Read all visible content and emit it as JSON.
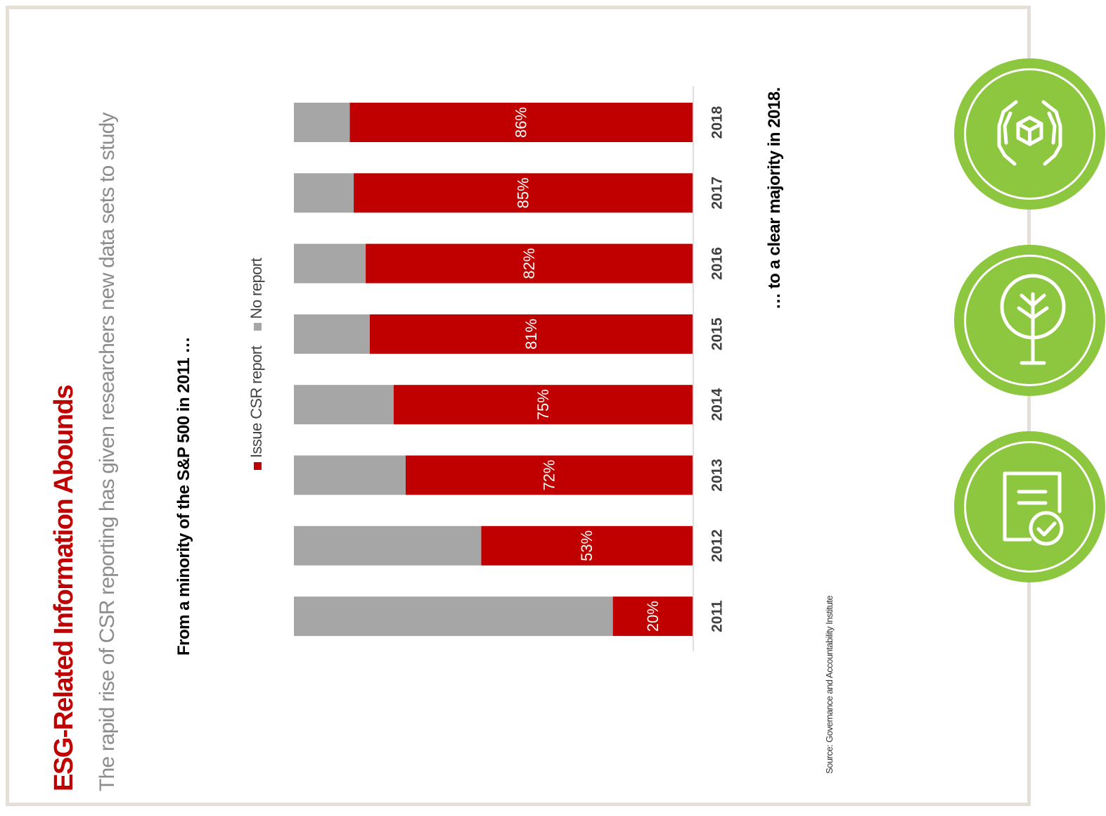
{
  "header": {
    "title": "ESG-Related Information Abounds",
    "subtitle": "The rapid rise of CSR reporting has given researchers new data sets to study"
  },
  "annotations": {
    "from": "From a minority of the S&P 500 in 2011 …",
    "to": "… to a clear majority in 2018."
  },
  "source": "Source:  Governance and Accountability Institute",
  "colors": {
    "issue": "#c00000",
    "no_report": "#a6a6a6",
    "icon_green": "#8dc63f"
  },
  "icons": [
    "hands-box-icon",
    "tree-icon",
    "document-check-icon"
  ],
  "chart_data": {
    "type": "bar",
    "stacked": true,
    "orientation": "horizontal",
    "categories": [
      "2011",
      "2012",
      "2013",
      "2014",
      "2015",
      "2016",
      "2017",
      "2018"
    ],
    "series": [
      {
        "name": "Issue CSR report",
        "values": [
          20,
          53,
          72,
          75,
          81,
          82,
          85,
          86
        ],
        "labels": [
          "20%",
          "53%",
          "72%",
          "75%",
          "81%",
          "82%",
          "85%",
          "86%"
        ]
      },
      {
        "name": "No report",
        "values": [
          80,
          47,
          28,
          25,
          19,
          18,
          15,
          14
        ]
      }
    ],
    "xlim": [
      0,
      100
    ],
    "grid": false,
    "legend": "top"
  }
}
